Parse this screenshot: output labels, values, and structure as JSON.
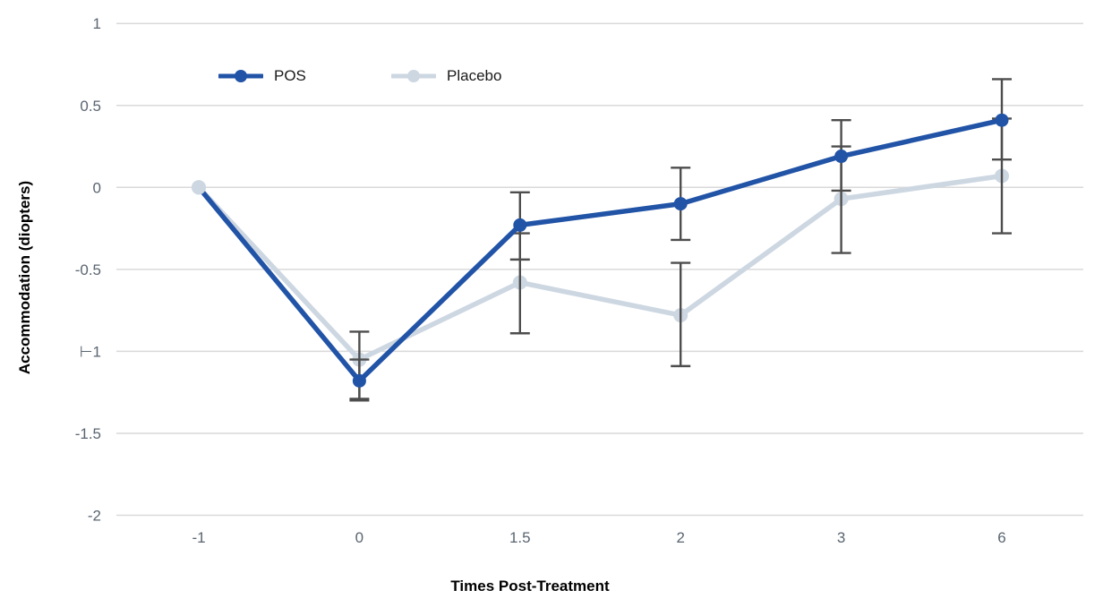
{
  "chart_data": {
    "type": "line",
    "title": "",
    "xlabel": "Times Post-Treatment",
    "ylabel": "Accommodation (diopters)",
    "categories": [
      "-1",
      "0",
      "1.5",
      "2",
      "3",
      "6"
    ],
    "x_values": [
      -1,
      0,
      1.5,
      2,
      3,
      6
    ],
    "ylim": [
      -2,
      1
    ],
    "grid": true,
    "legend_position": "top-inside",
    "y_ticks": {
      "values": [
        1,
        0.5,
        0,
        -0.5,
        -1,
        -1.5,
        -2
      ],
      "labels": [
        "1",
        "0.5",
        "0",
        "-0.5",
        "⊢1",
        "-1.5",
        "-2"
      ]
    },
    "series": [
      {
        "name": "POS",
        "color": "#2153A6",
        "values": [
          0,
          -1.18,
          -0.23,
          -0.1,
          0.19,
          0.41
        ],
        "err_low": [
          null,
          -1.3,
          -0.44,
          -0.32,
          -0.02,
          0.17
        ],
        "err_high": [
          null,
          -1.05,
          -0.03,
          0.12,
          0.41,
          0.66
        ]
      },
      {
        "name": "Placebo",
        "color": "#CDD7E2",
        "values": [
          0,
          -1.05,
          -0.58,
          -0.78,
          -0.07,
          0.07
        ],
        "err_low": [
          null,
          -1.29,
          -0.89,
          -1.09,
          -0.4,
          -0.28
        ],
        "err_high": [
          null,
          -0.88,
          -0.28,
          -0.46,
          0.25,
          0.42
        ]
      }
    ],
    "colors": {
      "grid": "#D9D9D9",
      "error_bar": "#4D4D4D",
      "tick_label": "#5A6570",
      "legend_text": "#1A1A1A",
      "background": "#FFFFFF"
    }
  }
}
